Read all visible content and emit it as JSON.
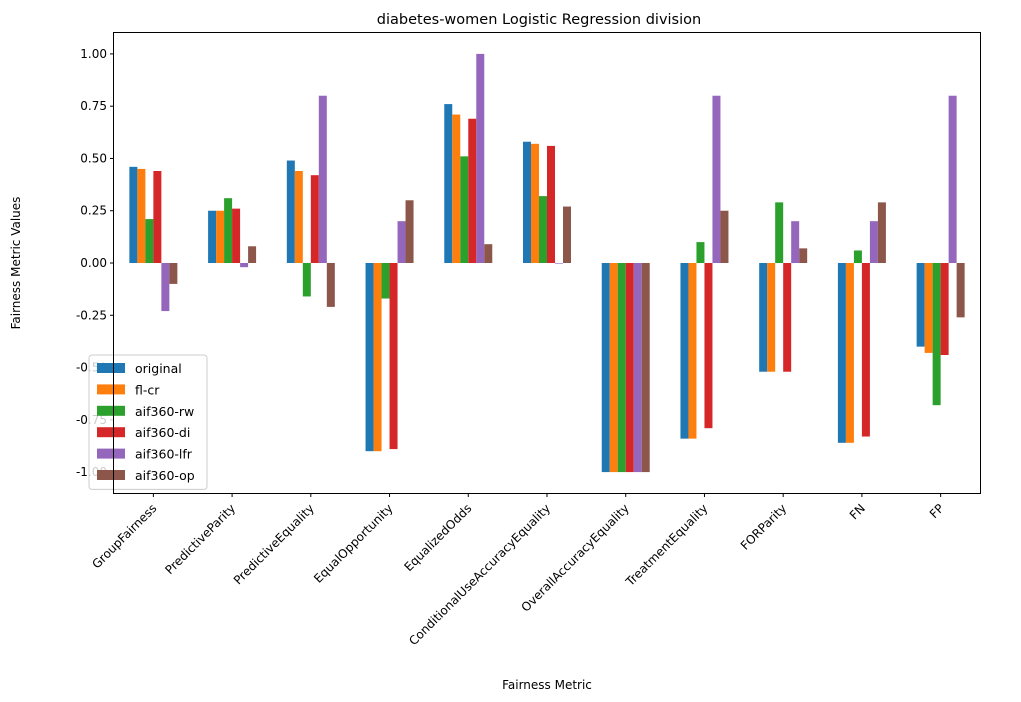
{
  "chart_data": {
    "type": "bar",
    "title": "diabetes-women Logistic Regression division",
    "xlabel": "Fairness Metric",
    "ylabel": "Fairness Metric Values",
    "ylim": [
      -1.1,
      1.1
    ],
    "yticks": [
      "1.00",
      "0.75",
      "0.50",
      "0.25",
      "0.00",
      "-0.25",
      "-0.50",
      "-0.75",
      "-1.00"
    ],
    "ytick_values": [
      1.0,
      0.75,
      0.5,
      0.25,
      0.0,
      -0.25,
      -0.5,
      -0.75,
      -1.0
    ],
    "grid": false,
    "legend_position": "bottom-left",
    "categories": [
      "GroupFairness",
      "PredictiveParity",
      "PredictiveEquality",
      "EqualOpportunity",
      "EqualizedOdds",
      "ConditionalUseAccuracyEquality",
      "OverallAccuracyEquality",
      "TreatmentEquality",
      "FORParity",
      "FN",
      "FP"
    ],
    "series": [
      {
        "name": "original",
        "color": "#1f77b4",
        "values": [
          0.46,
          0.25,
          0.49,
          -0.9,
          0.76,
          0.58,
          -1.0,
          -0.84,
          -0.52,
          -0.86,
          -0.4
        ]
      },
      {
        "name": "fl-cr",
        "color": "#ff7f0e",
        "values": [
          0.45,
          0.25,
          0.44,
          -0.9,
          0.71,
          0.57,
          -1.0,
          -0.84,
          -0.52,
          -0.86,
          -0.43
        ]
      },
      {
        "name": "aif360-rw",
        "color": "#2ca02c",
        "values": [
          0.21,
          0.31,
          -0.16,
          -0.17,
          0.51,
          0.32,
          -1.0,
          0.1,
          0.29,
          0.06,
          -0.68
        ]
      },
      {
        "name": "aif360-di",
        "color": "#d62728",
        "values": [
          0.44,
          0.26,
          0.42,
          -0.89,
          0.69,
          0.56,
          -1.0,
          -0.79,
          -0.52,
          -0.83,
          -0.44
        ]
      },
      {
        "name": "aif360-lfr",
        "color": "#9467bd",
        "values": [
          -0.23,
          -0.02,
          0.8,
          0.2,
          1.0,
          0.0,
          -1.0,
          0.8,
          0.2,
          0.2,
          0.8
        ]
      },
      {
        "name": "aif360-op",
        "color": "#8c564b",
        "values": [
          -0.1,
          0.08,
          -0.21,
          0.3,
          0.09,
          0.27,
          -1.0,
          0.25,
          0.07,
          0.29,
          -0.26
        ]
      }
    ]
  }
}
